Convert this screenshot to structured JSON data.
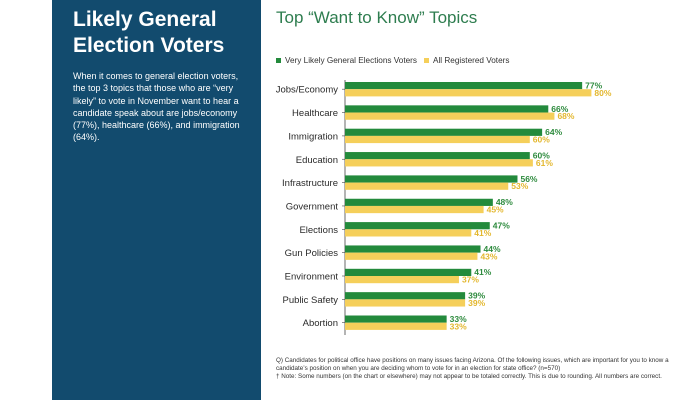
{
  "sidebar": {
    "title": "Likely General Election Voters",
    "body": "When it comes to general election voters, the top 3 topics that those who are “very likely” to vote in November want to hear a candidate speak about are jobs/economy (77%), healthcare (66%), and immigration (64%)."
  },
  "footnote": {
    "question": "Q) Candidates for political office have positions on many issues facing Arizona. Of the following issues, which are important for you to know a candidate’s position on when you are deciding whom to vote for in an election for state office? (n=570)",
    "note": "† Note: Some numbers (on the chart or elsewhere) may not appear to be totaled correctly. This is due to rounding. All numbers are correct."
  },
  "colors": {
    "sidebar_bg": "#124b6e",
    "series_green": "#238a3c",
    "series_yellow": "#f5cf5a",
    "label_green": "#2e8b3e",
    "label_yellow": "#e3b72e"
  },
  "chart_data": {
    "type": "bar",
    "orientation": "horizontal",
    "title": "Top “Want to Know” Topics",
    "categories": [
      "Jobs/Economy",
      "Healthcare",
      "Immigration",
      "Education",
      "Infrastructure",
      "Government",
      "Elections",
      "Gun Policies",
      "Environment",
      "Public Safety",
      "Abortion"
    ],
    "series": [
      {
        "name": "Very Likely General Elections Voters",
        "color": "#238a3c",
        "values": [
          77,
          66,
          64,
          60,
          56,
          48,
          47,
          44,
          41,
          39,
          33
        ]
      },
      {
        "name": "All Registered Voters",
        "color": "#f5cf5a",
        "values": [
          80,
          68,
          60,
          61,
          53,
          45,
          41,
          43,
          37,
          39,
          33
        ]
      }
    ],
    "value_suffix": "%",
    "xlim": [
      0,
      100
    ],
    "legend_position": "top",
    "grid": false
  }
}
